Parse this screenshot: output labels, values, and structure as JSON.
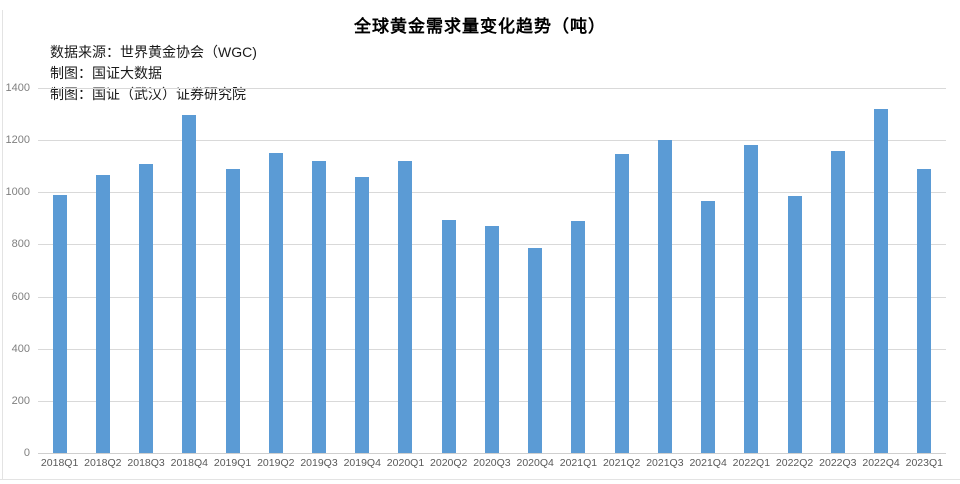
{
  "chart_data": {
    "type": "bar",
    "title": "全球黄金需求量变化趋势（吨）",
    "categories": [
      "2018Q1",
      "2018Q2",
      "2018Q3",
      "2018Q4",
      "2019Q1",
      "2019Q2",
      "2019Q3",
      "2019Q4",
      "2020Q1",
      "2020Q2",
      "2020Q3",
      "2020Q4",
      "2021Q1",
      "2021Q2",
      "2021Q3",
      "2021Q4",
      "2022Q1",
      "2022Q2",
      "2022Q3",
      "2022Q4",
      "2023Q1"
    ],
    "values": [
      990,
      1065,
      1110,
      1295,
      1090,
      1150,
      1120,
      1060,
      1120,
      895,
      870,
      785,
      890,
      1145,
      1200,
      965,
      1180,
      985,
      1160,
      1320,
      1090
    ],
    "xlabel": "",
    "ylabel": "",
    "ylim": [
      0,
      1400
    ],
    "y_ticks": [
      0,
      200,
      400,
      600,
      800,
      1000,
      1200,
      1400
    ],
    "grid": "horizontal",
    "legend_position": "none"
  },
  "notes": {
    "line1": "数据来源：世界黄金协会（WGC)",
    "line2": "制图：国证大数据",
    "line3": "制图：国证（武汉）证券研究院"
  },
  "colors": {
    "bar": "#5b9bd5",
    "gridline": "#d9d9d9",
    "axis_line": "#cfcfcf",
    "y_tick_label": "#7f7f7f",
    "x_tick_label": "#595959",
    "title": "#000000"
  }
}
